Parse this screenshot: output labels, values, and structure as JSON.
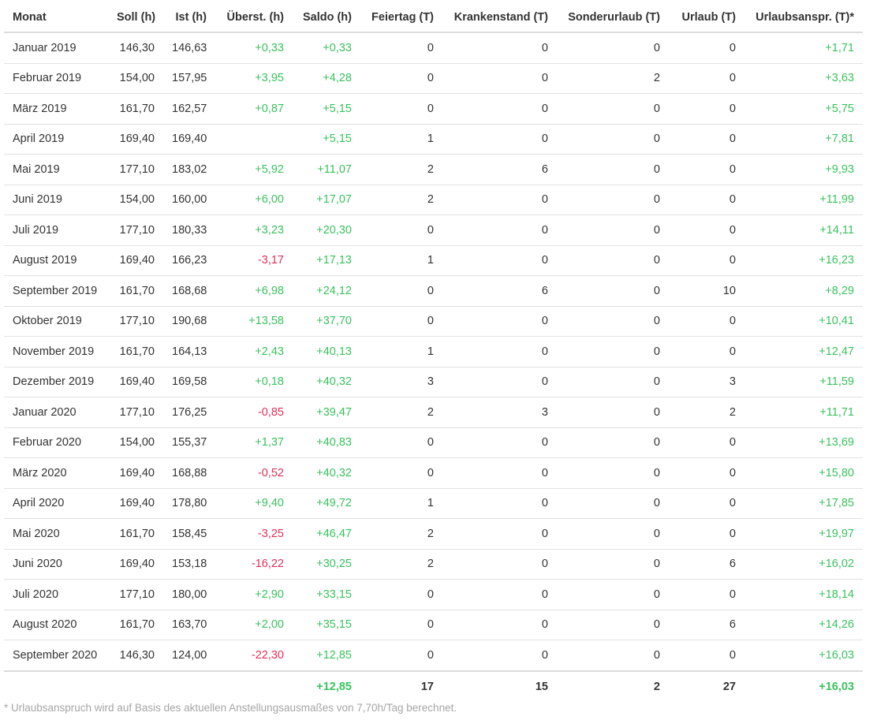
{
  "colors": {
    "positive": "#3ac25f",
    "negative": "#e0305a",
    "text": "#333333",
    "footnote": "#a6a6a6"
  },
  "table": {
    "columns": [
      "Monat",
      "Soll (h)",
      "Ist (h)",
      "Überst. (h)",
      "Saldo (h)",
      "Feiertag (T)",
      "Krankenstand (T)",
      "Sonderurlaub (T)",
      "Urlaub (T)",
      "Urlaubsanspr. (T)*"
    ],
    "rows": [
      [
        "Januar 2019",
        "146,30",
        "146,63",
        "+0,33",
        "+0,33",
        "0",
        "0",
        "0",
        "0",
        "+1,71"
      ],
      [
        "Februar 2019",
        "154,00",
        "157,95",
        "+3,95",
        "+4,28",
        "0",
        "0",
        "2",
        "0",
        "+3,63"
      ],
      [
        "März 2019",
        "161,70",
        "162,57",
        "+0,87",
        "+5,15",
        "0",
        "0",
        "0",
        "0",
        "+5,75"
      ],
      [
        "April 2019",
        "169,40",
        "169,40",
        "",
        "+5,15",
        "1",
        "0",
        "0",
        "0",
        "+7,81"
      ],
      [
        "Mai 2019",
        "177,10",
        "183,02",
        "+5,92",
        "+11,07",
        "2",
        "6",
        "0",
        "0",
        "+9,93"
      ],
      [
        "Juni 2019",
        "154,00",
        "160,00",
        "+6,00",
        "+17,07",
        "2",
        "0",
        "0",
        "0",
        "+11,99"
      ],
      [
        "Juli 2019",
        "177,10",
        "180,33",
        "+3,23",
        "+20,30",
        "0",
        "0",
        "0",
        "0",
        "+14,11"
      ],
      [
        "August 2019",
        "169,40",
        "166,23",
        "-3,17",
        "+17,13",
        "1",
        "0",
        "0",
        "0",
        "+16,23"
      ],
      [
        "September 2019",
        "161,70",
        "168,68",
        "+6,98",
        "+24,12",
        "0",
        "6",
        "0",
        "10",
        "+8,29"
      ],
      [
        "Oktober 2019",
        "177,10",
        "190,68",
        "+13,58",
        "+37,70",
        "0",
        "0",
        "0",
        "0",
        "+10,41"
      ],
      [
        "November 2019",
        "161,70",
        "164,13",
        "+2,43",
        "+40,13",
        "1",
        "0",
        "0",
        "0",
        "+12,47"
      ],
      [
        "Dezember 2019",
        "169,40",
        "169,58",
        "+0,18",
        "+40,32",
        "3",
        "0",
        "0",
        "3",
        "+11,59"
      ],
      [
        "Januar 2020",
        "177,10",
        "176,25",
        "-0,85",
        "+39,47",
        "2",
        "3",
        "0",
        "2",
        "+11,71"
      ],
      [
        "Februar 2020",
        "154,00",
        "155,37",
        "+1,37",
        "+40,83",
        "0",
        "0",
        "0",
        "0",
        "+13,69"
      ],
      [
        "März 2020",
        "169,40",
        "168,88",
        "-0,52",
        "+40,32",
        "0",
        "0",
        "0",
        "0",
        "+15,80"
      ],
      [
        "April 2020",
        "169,40",
        "178,80",
        "+9,40",
        "+49,72",
        "1",
        "0",
        "0",
        "0",
        "+17,85"
      ],
      [
        "Mai 2020",
        "161,70",
        "158,45",
        "-3,25",
        "+46,47",
        "2",
        "0",
        "0",
        "0",
        "+19,97"
      ],
      [
        "Juni 2020",
        "169,40",
        "153,18",
        "-16,22",
        "+30,25",
        "2",
        "0",
        "0",
        "6",
        "+16,02"
      ],
      [
        "Juli 2020",
        "177,10",
        "180,00",
        "+2,90",
        "+33,15",
        "0",
        "0",
        "0",
        "0",
        "+18,14"
      ],
      [
        "August 2020",
        "161,70",
        "163,70",
        "+2,00",
        "+35,15",
        "0",
        "0",
        "0",
        "6",
        "+14,26"
      ],
      [
        "September 2020",
        "146,30",
        "124,00",
        "-22,30",
        "+12,85",
        "0",
        "0",
        "0",
        "0",
        "+16,03"
      ]
    ],
    "totals": [
      "",
      "",
      "",
      "",
      "+12,85",
      "17",
      "15",
      "2",
      "27",
      "+16,03"
    ]
  },
  "footnote": "* Urlaubsanspruch wird auf Basis des aktuellen Anstellungsausmaßes von 7,70h/Tag berechnet."
}
